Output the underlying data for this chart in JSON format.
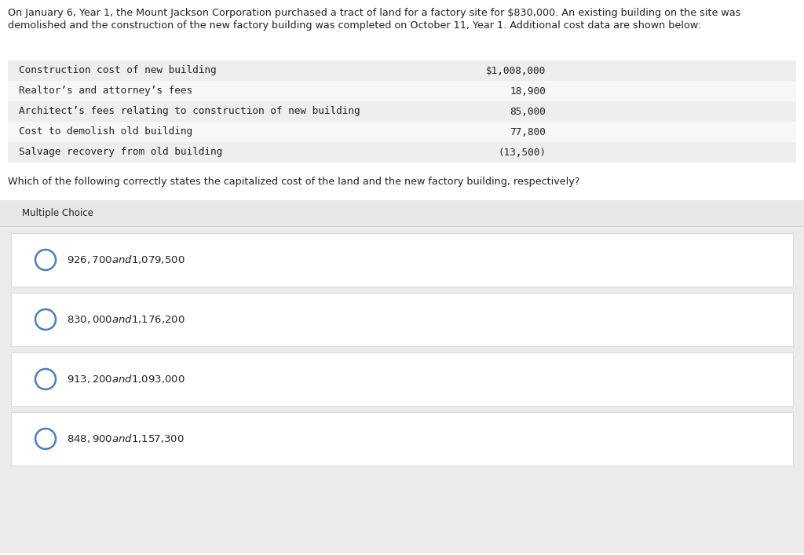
{
  "bg_color": "#ffffff",
  "header_text_line1": "On January 6, Year 1, the Mount Jackson Corporation purchased a tract of land for a factory site for $830,000. An existing building on the site was",
  "header_text_line2": "demolished and the construction of the new factory building was completed on October 11, Year 1. Additional cost data are shown below:",
  "table_rows": [
    {
      "label": "Construction cost of new building",
      "value": "$1,008,000"
    },
    {
      "label": "Realtor’s and attorney’s fees",
      "value": "18,900"
    },
    {
      "label": "Architect’s fees relating to construction of new building",
      "value": "85,000"
    },
    {
      "label": "Cost to demolish old building",
      "value": "77,800"
    },
    {
      "label": "Salvage recovery from old building",
      "value": "(13,500)"
    }
  ],
  "table_bg_odd": "#eeeeee",
  "table_bg_even": "#f7f7f7",
  "question_text": "Which of the following correctly states the capitalized cost of the land and the new factory building, respectively?",
  "mc_label": "Multiple Choice",
  "mc_header_bg": "#e8e8e8",
  "outer_bg": "#ebebeb",
  "choices": [
    "$926,700 and $1,079,500",
    "$830,000 and $1,176,200",
    "$913,200 and $1,093,000",
    "$848,900 and $1,157,300"
  ],
  "choice_bg": "#ffffff",
  "choice_gap_bg": "#ebebeb",
  "circle_color": "#4a7fc1",
  "divider_color": "#d0d0d0",
  "text_color": "#222222",
  "font_size_header": 9.2,
  "font_size_table": 9.2,
  "font_size_question": 9.2,
  "font_size_mc": 8.5,
  "font_size_choice": 9.5
}
